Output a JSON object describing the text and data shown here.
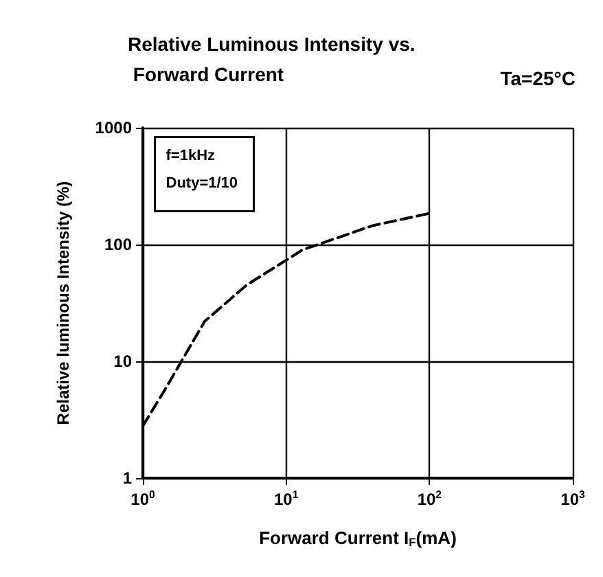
{
  "chart_data": {
    "type": "line",
    "title": "Relative Luminous Intensity vs. Forward Current",
    "xlabel": "Forward Current I$_{F}$(mA)",
    "ylabel": "Relative luminous Intensity (%)",
    "annotations": [
      "Ta=25°C",
      "f=1kHz",
      "Duty=1/10"
    ],
    "x": [
      1,
      1.4,
      2.7,
      5.3,
      13,
      40,
      100
    ],
    "series": [
      {
        "color": "#000000",
        "values": [
          2.8,
          5.5,
          22,
          45,
          90,
          145,
          185
        ]
      }
    ],
    "log": "xy",
    "xlim": [
      1,
      1000
    ],
    "xticks": [
      {
        "value": 1,
        "label": "10$^{0}$"
      },
      {
        "value": 10,
        "label": "10$^{1}$"
      },
      {
        "value": 100,
        "label": "10$^{2}$"
      },
      {
        "value": 1000,
        "label": "10$^{3}$"
      }
    ],
    "ylim": [
      1,
      1000
    ],
    "yticks": [
      1,
      10,
      100,
      1000
    ],
    "grid": true,
    "marker": "none",
    "line_style": "dashed"
  }
}
